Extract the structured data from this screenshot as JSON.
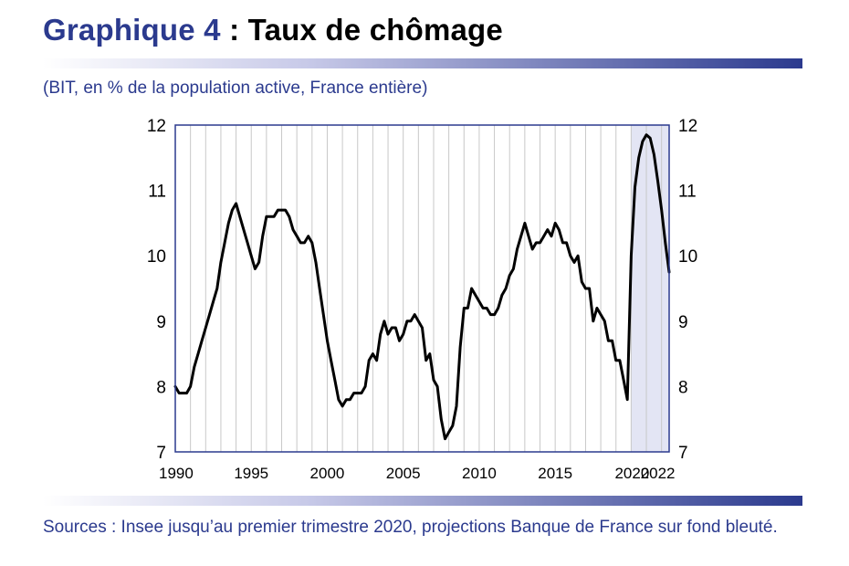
{
  "title": {
    "lead": "Graphique 4",
    "rest": " : Taux de chômage"
  },
  "subtitle": "(BIT, en % de la population active, France entière)",
  "source": "Sources : Insee jusqu’au premier trimestre 2020, projections Banque de France sur fond bleuté.",
  "colors": {
    "accent": "#2b3a8e",
    "line": "#000000",
    "projection_band": "#e3e5f4",
    "grid": "#c8c8c8",
    "frame": "#2b3a8e"
  },
  "chart_data": {
    "type": "line",
    "title": "Taux de chômage",
    "xlabel": "",
    "ylabel": "",
    "xlim": [
      1990,
      2022.5
    ],
    "ylim": [
      7,
      12
    ],
    "yticks": [
      7,
      8,
      9,
      10,
      11,
      12
    ],
    "xticks": [
      1990,
      1995,
      2000,
      2005,
      2010,
      2015,
      2020,
      2022
    ],
    "grid": "vertical lines every year",
    "legend": "none",
    "projection_band": {
      "from": 2020.0,
      "to": 2022.5
    },
    "series": [
      {
        "x": [
          1990.0,
          1990.25,
          1990.5,
          1990.75,
          1991.0,
          1991.25,
          1991.5,
          1991.75,
          1992.0,
          1992.25,
          1992.5,
          1992.75,
          1993.0,
          1993.25,
          1993.5,
          1993.75,
          1994.0,
          1994.25,
          1994.5,
          1994.75,
          1995.0,
          1995.25,
          1995.5,
          1995.75,
          1996.0,
          1996.25,
          1996.5,
          1996.75,
          1997.0,
          1997.25,
          1997.5,
          1997.75,
          1998.0,
          1998.25,
          1998.5,
          1998.75,
          1999.0,
          1999.25,
          1999.5,
          1999.75,
          2000.0,
          2000.25,
          2000.5,
          2000.75,
          2001.0,
          2001.25,
          2001.5,
          2001.75,
          2002.0,
          2002.25,
          2002.5,
          2002.75,
          2003.0,
          2003.25,
          2003.5,
          2003.75,
          2004.0,
          2004.25,
          2004.5,
          2004.75,
          2005.0,
          2005.25,
          2005.5,
          2005.75,
          2006.0,
          2006.25,
          2006.5,
          2006.75,
          2007.0,
          2007.25,
          2007.5,
          2007.75,
          2008.0,
          2008.25,
          2008.5,
          2008.75,
          2009.0,
          2009.25,
          2009.5,
          2009.75,
          2010.0,
          2010.25,
          2010.5,
          2010.75,
          2011.0,
          2011.25,
          2011.5,
          2011.75,
          2012.0,
          2012.25,
          2012.5,
          2012.75,
          2013.0,
          2013.25,
          2013.5,
          2013.75,
          2014.0,
          2014.25,
          2014.5,
          2014.75,
          2015.0,
          2015.25,
          2015.5,
          2015.75,
          2016.0,
          2016.25,
          2016.5,
          2016.75,
          2017.0,
          2017.25,
          2017.5,
          2017.75,
          2018.0,
          2018.25,
          2018.5,
          2018.75,
          2019.0,
          2019.25,
          2019.5,
          2019.75,
          2020.0,
          2020.25,
          2020.5,
          2020.75,
          2021.0,
          2021.25,
          2021.5,
          2021.75,
          2022.0,
          2022.25,
          2022.5
        ],
        "y": [
          8.0,
          7.9,
          7.9,
          7.9,
          8.0,
          8.3,
          8.5,
          8.7,
          8.9,
          9.1,
          9.3,
          9.5,
          9.9,
          10.2,
          10.5,
          10.7,
          10.8,
          10.6,
          10.4,
          10.2,
          10.0,
          9.8,
          9.9,
          10.3,
          10.6,
          10.6,
          10.6,
          10.7,
          10.7,
          10.7,
          10.6,
          10.4,
          10.3,
          10.2,
          10.2,
          10.3,
          10.2,
          9.9,
          9.5,
          9.1,
          8.7,
          8.4,
          8.1,
          7.8,
          7.7,
          7.8,
          7.8,
          7.9,
          7.9,
          7.9,
          8.0,
          8.4,
          8.5,
          8.4,
          8.8,
          9.0,
          8.8,
          8.9,
          8.9,
          8.7,
          8.8,
          9.0,
          9.0,
          9.1,
          9.0,
          8.9,
          8.4,
          8.5,
          8.1,
          8.0,
          7.5,
          7.2,
          7.3,
          7.4,
          7.7,
          8.6,
          9.2,
          9.2,
          9.5,
          9.4,
          9.3,
          9.2,
          9.2,
          9.1,
          9.1,
          9.2,
          9.4,
          9.5,
          9.7,
          9.8,
          10.1,
          10.3,
          10.5,
          10.3,
          10.1,
          10.2,
          10.2,
          10.3,
          10.4,
          10.3,
          10.5,
          10.4,
          10.2,
          10.2,
          10.0,
          9.9,
          10.0,
          9.6,
          9.5,
          9.5,
          9.0,
          9.2,
          9.1,
          9.0,
          8.7,
          8.7,
          8.4,
          8.4,
          8.1,
          7.8,
          10.0,
          11.05,
          11.5,
          11.75,
          11.85,
          11.8,
          11.55,
          11.15,
          10.7,
          10.2,
          9.75
        ]
      }
    ]
  }
}
